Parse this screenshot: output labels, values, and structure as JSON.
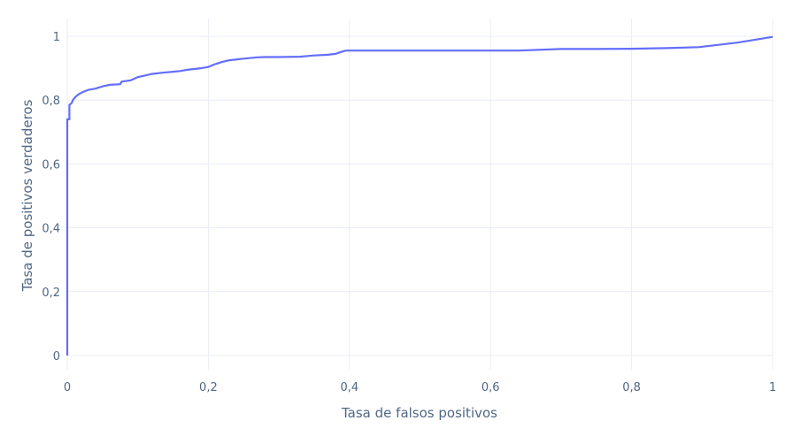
{
  "chart_data": {
    "type": "line",
    "xlabel": "Tasa de falsos positivos",
    "ylabel": "Tasa de positivos verdaderos",
    "xlim": [
      0,
      1
    ],
    "ylim": [
      0,
      1
    ],
    "x_ticks": [
      0,
      0.2,
      0.4,
      0.6,
      0.8,
      1
    ],
    "x_tick_labels": [
      "0",
      "0,2",
      "0,4",
      "0,6",
      "0,8",
      "1"
    ],
    "y_ticks": [
      0,
      0.2,
      0.4,
      0.6,
      0.8,
      1
    ],
    "y_tick_labels": [
      "0",
      "0,2",
      "0,4",
      "0,6",
      "0,8",
      "1"
    ],
    "grid": true,
    "legend": "none",
    "colors": {
      "line": "#636efa",
      "grid": "#e9edf4",
      "text": "#506784"
    },
    "series": [
      {
        "x": [
          0,
          0,
          0.003,
          0.003,
          0.006,
          0.008,
          0.01,
          0.013,
          0.016,
          0.02,
          0.025,
          0.03,
          0.04,
          0.05,
          0.06,
          0.075,
          0.077,
          0.09,
          0.1,
          0.11,
          0.12,
          0.135,
          0.15,
          0.16,
          0.17,
          0.19,
          0.2,
          0.21,
          0.22,
          0.23,
          0.25,
          0.27,
          0.28,
          0.3,
          0.33,
          0.35,
          0.37,
          0.38,
          0.39,
          0.395,
          0.5,
          0.6,
          0.64,
          0.7,
          0.75,
          0.8,
          0.85,
          0.895,
          0.95,
          1.0
        ],
        "y": [
          0,
          0.74,
          0.74,
          0.785,
          0.79,
          0.8,
          0.806,
          0.813,
          0.818,
          0.823,
          0.828,
          0.832,
          0.836,
          0.843,
          0.848,
          0.85,
          0.858,
          0.862,
          0.872,
          0.877,
          0.882,
          0.886,
          0.889,
          0.891,
          0.895,
          0.9,
          0.904,
          0.913,
          0.92,
          0.925,
          0.93,
          0.934,
          0.935,
          0.935,
          0.936,
          0.94,
          0.942,
          0.945,
          0.952,
          0.955,
          0.955,
          0.955,
          0.955,
          0.96,
          0.96,
          0.961,
          0.963,
          0.966,
          0.98,
          0.998
        ]
      }
    ]
  }
}
